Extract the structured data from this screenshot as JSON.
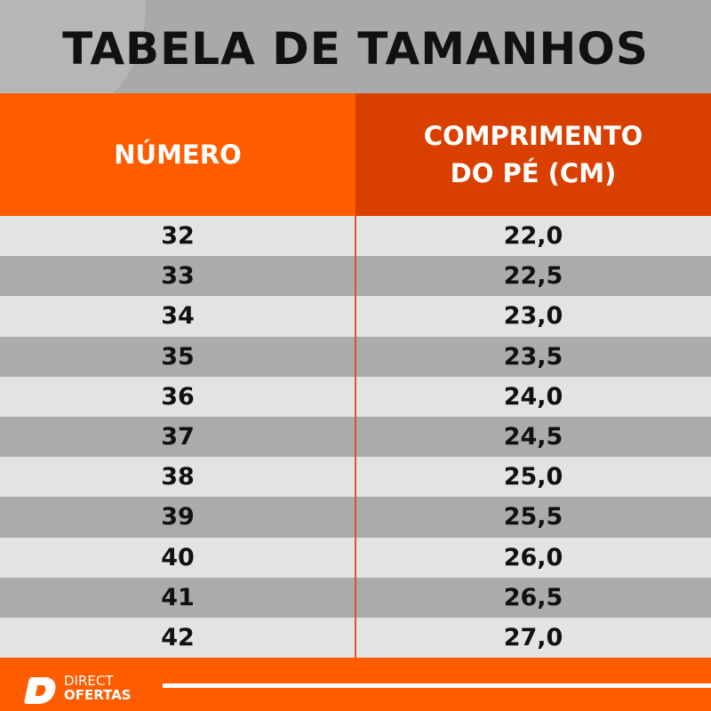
{
  "title": "TABELA DE TAMANHOS",
  "headers": {
    "number": "NÚMERO",
    "length": "COMPRIMENTO DO PÉ (CM)"
  },
  "rows": [
    {
      "number": "32",
      "length": "22,0"
    },
    {
      "number": "33",
      "length": "22,5"
    },
    {
      "number": "34",
      "length": "23,0"
    },
    {
      "number": "35",
      "length": "23,5"
    },
    {
      "number": "36",
      "length": "24,0"
    },
    {
      "number": "37",
      "length": "24,5"
    },
    {
      "number": "38",
      "length": "25,0"
    },
    {
      "number": "39",
      "length": "25,5"
    },
    {
      "number": "40",
      "length": "26,0"
    },
    {
      "number": "41",
      "length": "26,5"
    },
    {
      "number": "42",
      "length": "27,0"
    }
  ],
  "logo": {
    "line1": "DIRECT",
    "line2": "OFERTAS"
  },
  "colors": {
    "orange": "#ff5c00",
    "dark_orange": "#d94000",
    "row_light": "#e3e3e3",
    "row_dark": "#ababab"
  }
}
